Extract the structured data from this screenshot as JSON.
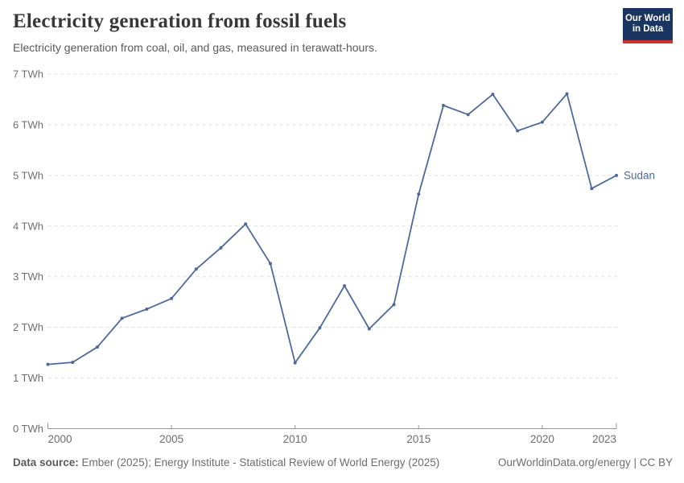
{
  "header": {
    "title": "Electricity generation from fossil fuels",
    "subtitle": "Electricity generation from coal, oil, and gas, measured in terawatt-hours.",
    "logo_line1": "Our World",
    "logo_line2": "in Data"
  },
  "chart_data": {
    "type": "line",
    "title": "Electricity generation from fossil fuels",
    "ylabel": "TWh",
    "y_tick_suffix": " TWh",
    "xlim": [
      2000,
      2023
    ],
    "ylim": [
      0,
      7
    ],
    "x_ticks": [
      2000,
      2005,
      2010,
      2015,
      2020,
      2023
    ],
    "y_ticks": [
      0,
      1,
      2,
      3,
      4,
      5,
      6,
      7
    ],
    "grid": "horizontal-dashed",
    "legend_position": "end-of-line",
    "series": [
      {
        "name": "Sudan",
        "color": "#4C6A9C",
        "x": [
          2000,
          2001,
          2002,
          2003,
          2004,
          2005,
          2006,
          2007,
          2008,
          2009,
          2010,
          2011,
          2012,
          2013,
          2014,
          2015,
          2016,
          2017,
          2018,
          2019,
          2020,
          2021,
          2022,
          2023
        ],
        "values": [
          1.27,
          1.31,
          1.61,
          2.18,
          2.36,
          2.57,
          3.15,
          3.57,
          4.04,
          3.26,
          1.3,
          1.99,
          2.82,
          1.97,
          2.45,
          4.63,
          6.38,
          6.2,
          6.6,
          5.88,
          6.05,
          6.61,
          4.74,
          5.0
        ]
      }
    ]
  },
  "footer": {
    "source_label": "Data source:",
    "source_text": " Ember (2025); Energy Institute - Statistical Review of World Energy (2025)",
    "credit": "OurWorldinData.org/energy | CC BY"
  },
  "colors": {
    "series_blue": "#4C6A9C",
    "logo_navy": "#1a3560",
    "logo_red": "#cb3333",
    "grid": "#dcdcdc",
    "axis": "#949494",
    "tick_label": "#6e6e6e",
    "title_text": "#383838",
    "subtitle_text": "#5a5a5a",
    "footer_text": "#6d6d6d"
  }
}
